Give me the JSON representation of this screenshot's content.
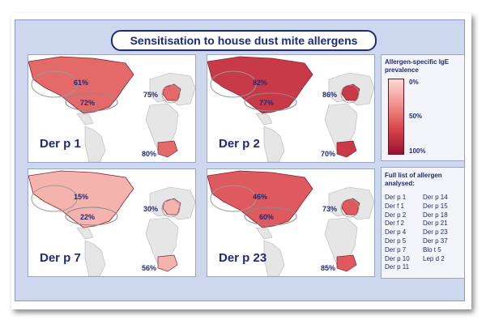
{
  "title": "Sensitisation to house dust mite allergens",
  "maps": [
    {
      "allergen": "Der p 1",
      "north_america_top": "61%",
      "north_america_bottom": "72%",
      "europe": "75%",
      "south_africa": "80%"
    },
    {
      "allergen": "Der p 2",
      "north_america_top": "82%",
      "north_america_bottom": "77%",
      "europe": "86%",
      "south_africa": "70%"
    },
    {
      "allergen": "Der p 7",
      "north_america_top": "15%",
      "north_america_bottom": "22%",
      "europe": "30%",
      "south_africa": "56%"
    },
    {
      "allergen": "Der p 23",
      "north_america_top": "46%",
      "north_america_bottom": "60%",
      "europe": "73%",
      "south_africa": "85%"
    }
  ],
  "legend": {
    "title": "Allergen-specific IgE prevalence",
    "ticks": [
      "0%",
      "50%",
      "100%"
    ],
    "colors": {
      "low": "#fcd9d6",
      "mid": "#f08f8a",
      "high": "#9b1030"
    }
  },
  "allergen_list": {
    "title": "Full list of allergen analysed:",
    "column1": [
      "Der p 1",
      "Der f 1",
      "Der p 2",
      "Der f 2",
      "Der p 4",
      "Der p 5",
      "Der p 7",
      "Der p 10",
      "Der p 11"
    ],
    "column2": [
      "Der p 14",
      "Der p 15",
      "Der p 18",
      "Der p 21",
      "Der p 23",
      "Der p 37",
      "Blo t 5",
      "Lep d 2"
    ]
  },
  "fill_levels": [
    "#e46a6a",
    "#c93a48",
    "#f5b3ad",
    "#de5a5e"
  ]
}
